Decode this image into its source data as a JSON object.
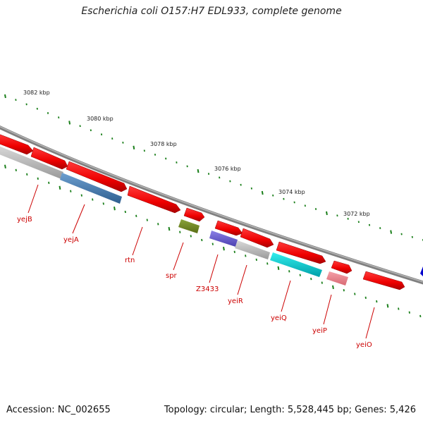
{
  "title": "Escherichia coli O157:H7 EDL933, complete genome",
  "footer": {
    "accession": "Accession: NC_002655",
    "summary": "Topology: circular; Length: 5,528,445 bp; Genes: 5,426"
  },
  "ruler_labels": [
    "3082 kbp",
    "3080 kbp",
    "3078 kbp",
    "3076 kbp",
    "3074 kbp",
    "3072 kbp"
  ],
  "genes": [
    {
      "name": "yejB"
    },
    {
      "name": "yejA"
    },
    {
      "name": "rtn"
    },
    {
      "name": "spr"
    },
    {
      "name": "Z3433"
    },
    {
      "name": "yeiR"
    },
    {
      "name": "yeiQ"
    },
    {
      "name": "yeiP"
    },
    {
      "name": "yeiO"
    }
  ],
  "colors": {
    "feature_red": "#ff0000",
    "label_red": "#cc0000",
    "tick_green": "#1a7f1a",
    "backbone_gray": "#808080"
  }
}
